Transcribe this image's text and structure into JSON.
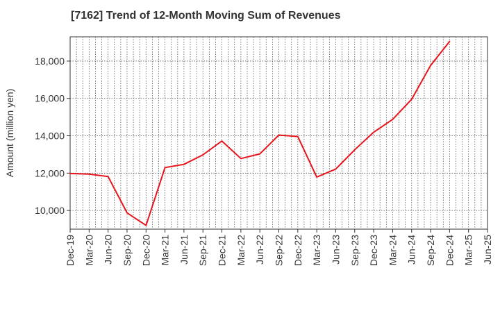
{
  "chart_data": {
    "type": "line",
    "title": "[7162]  Trend of 12-Month Moving Sum of Revenues",
    "xlabel": "",
    "ylabel": "Amount (million yen)",
    "ylim": [
      9000,
      19300
    ],
    "yticks": [
      10000,
      12000,
      14000,
      16000,
      18000
    ],
    "ytick_labels": [
      "10,000",
      "12,000",
      "14,000",
      "16,000",
      "18,000"
    ],
    "categories": [
      "Dec-19",
      "Mar-20",
      "Jun-20",
      "Sep-20",
      "Dec-20",
      "Mar-21",
      "Jun-21",
      "Sep-21",
      "Dec-21",
      "Mar-22",
      "Jun-22",
      "Sep-22",
      "Dec-22",
      "Mar-23",
      "Jun-23",
      "Sep-23",
      "Dec-23",
      "Mar-24",
      "Jun-24",
      "Sep-24",
      "Dec-24",
      "Mar-25",
      "Jun-25"
    ],
    "series": [
      {
        "name": "",
        "color": "#e8141c",
        "values": [
          11980,
          11950,
          11820,
          9870,
          9200,
          12300,
          12470,
          12980,
          13720,
          12780,
          13030,
          14040,
          13960,
          11790,
          12220,
          13250,
          14190,
          14880,
          15950,
          17760,
          19050,
          null,
          null
        ]
      }
    ],
    "grid": true,
    "legend": "none"
  }
}
